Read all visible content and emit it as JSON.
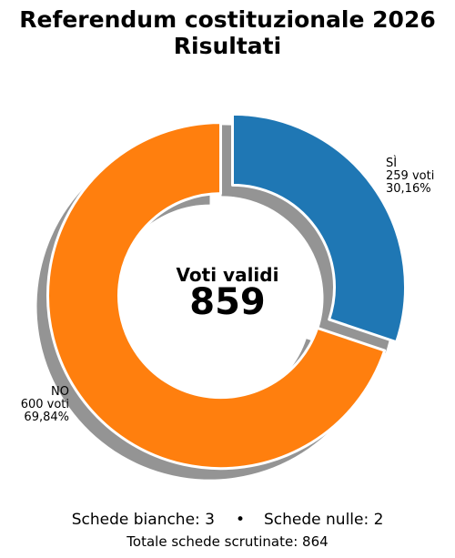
{
  "chart_data": {
    "type": "pie",
    "style": "donut",
    "title_lines": [
      "Referendum costituzionale 2026",
      "Risultati"
    ],
    "slices": [
      {
        "label": "SÌ",
        "value": 259,
        "votes_text": "259 voti",
        "percent_text": "30,16%",
        "color": "#1f77b4"
      },
      {
        "label": "NO",
        "value": 600,
        "votes_text": "600 voti",
        "percent_text": "69,84%",
        "color": "#ff7f0e"
      }
    ],
    "center": {
      "label": "Voti validi",
      "value": "859"
    },
    "exploded": true,
    "shadow": true
  },
  "footer": {
    "bianche": "Schede bianche: 3",
    "separator": "•",
    "nulle": "Schede nulle: 2",
    "totale": "Totale schede scrutinate: 864"
  }
}
